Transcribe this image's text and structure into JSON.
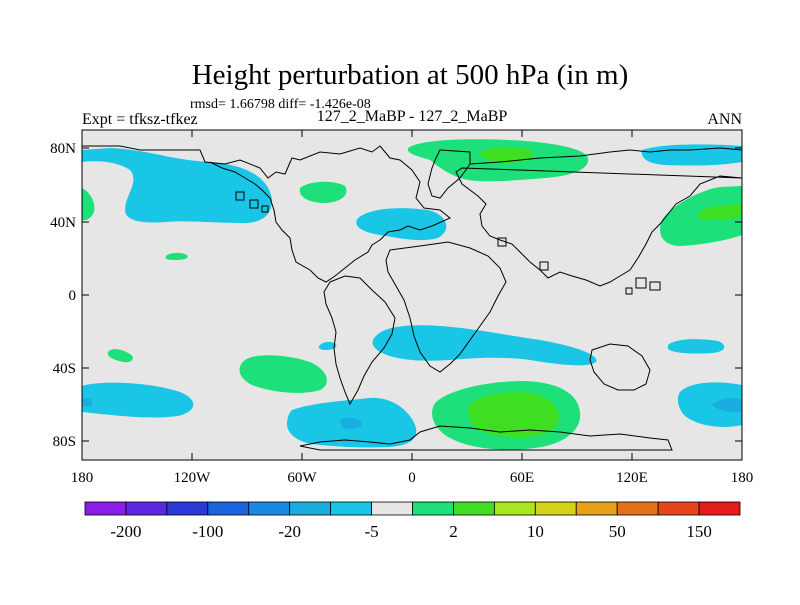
{
  "chart_data": {
    "type": "map_contour",
    "title": "Height perturbation at 500 hPa (in m)",
    "stats_text": "rmsd= 1.66798 diff= -1.426e-08",
    "experiment_label": "Expt = tfksz-tfkez",
    "comparison_label": "127_2_MaBP - 127_2_MaBP",
    "season_label": "ANN",
    "x_ticks": [
      "180",
      "120W",
      "60W",
      "0",
      "60E",
      "120E",
      "180"
    ],
    "y_ticks": [
      "80N",
      "40N",
      "0",
      "40S",
      "80S"
    ],
    "xlim": [
      -180,
      180
    ],
    "ylim": [
      -90,
      90
    ],
    "colorbar": {
      "labels": [
        "-200",
        "-100",
        "-20",
        "-5",
        "2",
        "10",
        "50",
        "150"
      ],
      "colors": [
        "#8a1ee8",
        "#5a28e0",
        "#2a3ad8",
        "#1a64e0",
        "#1a88e6",
        "#1aaee0",
        "#1ac6e6",
        "#e6e6e6",
        "#1ee07a",
        "#3ede20",
        "#a8e620",
        "#d6d21a",
        "#e6a01a",
        "#e6701a",
        "#e6441a",
        "#e61a1a"
      ]
    },
    "colors": {
      "background_field": "#e6e6e6",
      "neg_level_1": "#1ac6e6",
      "neg_level_2": "#1aaee0",
      "pos_level_1": "#1ee07a",
      "pos_level_2": "#3ede20"
    }
  }
}
